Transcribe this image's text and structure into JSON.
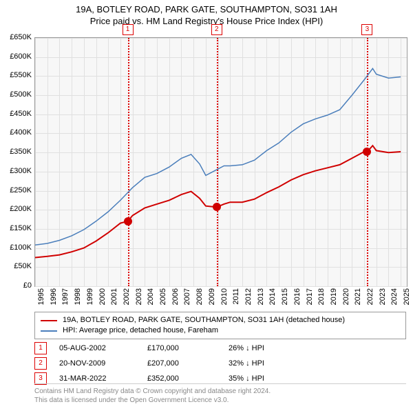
{
  "title": "19A, BOTLEY ROAD, PARK GATE, SOUTHAMPTON, SO31 1AH",
  "subtitle": "Price paid vs. HM Land Registry's House Price Index (HPI)",
  "chart": {
    "type": "line",
    "background_color": "#f7f7f7",
    "grid_color": "#e0e0e0",
    "border_color": "#999999",
    "ylim": [
      0,
      650000
    ],
    "ytick_step": 50000,
    "yticks_labels": [
      "£0",
      "£50K",
      "£100K",
      "£150K",
      "£200K",
      "£250K",
      "£300K",
      "£350K",
      "£400K",
      "£450K",
      "£500K",
      "£550K",
      "£600K",
      "£650K"
    ],
    "xlim": [
      1995,
      2025.5
    ],
    "xticks": [
      1995,
      1996,
      1997,
      1998,
      1999,
      2000,
      2001,
      2002,
      2003,
      2004,
      2005,
      2006,
      2007,
      2008,
      2009,
      2010,
      2011,
      2012,
      2013,
      2014,
      2015,
      2016,
      2017,
      2018,
      2019,
      2020,
      2021,
      2022,
      2023,
      2024,
      2025
    ],
    "marker_color": "#d00000",
    "markers": [
      {
        "num": "1",
        "x": 2002.6
      },
      {
        "num": "2",
        "x": 2009.9
      },
      {
        "num": "3",
        "x": 2022.25
      }
    ],
    "series_property": {
      "label": "19A, BOTLEY ROAD, PARK GATE, SOUTHAMPTON, SO31 1AH (detached house)",
      "color": "#d00000",
      "line_width": 2,
      "data": [
        [
          1995,
          75000
        ],
        [
          1996,
          78000
        ],
        [
          1997,
          82000
        ],
        [
          1998,
          90000
        ],
        [
          1999,
          100000
        ],
        [
          2000,
          118000
        ],
        [
          2001,
          140000
        ],
        [
          2002,
          165000
        ],
        [
          2002.6,
          170000
        ],
        [
          2003,
          185000
        ],
        [
          2004,
          205000
        ],
        [
          2005,
          215000
        ],
        [
          2006,
          225000
        ],
        [
          2007,
          240000
        ],
        [
          2007.8,
          248000
        ],
        [
          2008.5,
          230000
        ],
        [
          2009,
          210000
        ],
        [
          2009.9,
          207000
        ],
        [
          2010.5,
          215000
        ],
        [
          2011,
          220000
        ],
        [
          2012,
          220000
        ],
        [
          2013,
          228000
        ],
        [
          2014,
          245000
        ],
        [
          2015,
          260000
        ],
        [
          2016,
          278000
        ],
        [
          2017,
          292000
        ],
        [
          2018,
          302000
        ],
        [
          2019,
          310000
        ],
        [
          2020,
          318000
        ],
        [
          2021,
          335000
        ],
        [
          2022,
          352000
        ],
        [
          2022.25,
          352000
        ],
        [
          2022.7,
          368000
        ],
        [
          2023,
          355000
        ],
        [
          2024,
          350000
        ],
        [
          2025,
          352000
        ]
      ],
      "points": [
        {
          "x": 2002.6,
          "y": 170000
        },
        {
          "x": 2009.9,
          "y": 207000
        },
        {
          "x": 2022.25,
          "y": 352000
        }
      ]
    },
    "series_hpi": {
      "label": "HPI: Average price, detached house, Fareham",
      "color": "#4a7ebb",
      "line_width": 1.5,
      "data": [
        [
          1995,
          108000
        ],
        [
          1996,
          112000
        ],
        [
          1997,
          120000
        ],
        [
          1998,
          132000
        ],
        [
          1999,
          148000
        ],
        [
          2000,
          170000
        ],
        [
          2001,
          195000
        ],
        [
          2002,
          225000
        ],
        [
          2003,
          258000
        ],
        [
          2004,
          285000
        ],
        [
          2005,
          295000
        ],
        [
          2006,
          312000
        ],
        [
          2007,
          335000
        ],
        [
          2007.8,
          345000
        ],
        [
          2008.5,
          320000
        ],
        [
          2009,
          290000
        ],
        [
          2009.9,
          305000
        ],
        [
          2010.5,
          315000
        ],
        [
          2011,
          315000
        ],
        [
          2012,
          318000
        ],
        [
          2013,
          330000
        ],
        [
          2014,
          355000
        ],
        [
          2015,
          375000
        ],
        [
          2016,
          403000
        ],
        [
          2017,
          425000
        ],
        [
          2018,
          438000
        ],
        [
          2019,
          448000
        ],
        [
          2020,
          462000
        ],
        [
          2021,
          500000
        ],
        [
          2022,
          540000
        ],
        [
          2022.7,
          570000
        ],
        [
          2023,
          555000
        ],
        [
          2024,
          545000
        ],
        [
          2025,
          548000
        ]
      ]
    }
  },
  "legend": {
    "rows": [
      {
        "color": "#d00000",
        "label": "19A, BOTLEY ROAD, PARK GATE, SOUTHAMPTON, SO31 1AH (detached house)"
      },
      {
        "color": "#4a7ebb",
        "label": "HPI: Average price, detached house, Fareham"
      }
    ]
  },
  "events": [
    {
      "num": "1",
      "date": "05-AUG-2002",
      "price": "£170,000",
      "diff": "26% ↓ HPI"
    },
    {
      "num": "2",
      "date": "20-NOV-2009",
      "price": "£207,000",
      "diff": "32% ↓ HPI"
    },
    {
      "num": "3",
      "date": "31-MAR-2022",
      "price": "£352,000",
      "diff": "35% ↓ HPI"
    }
  ],
  "footer": {
    "line1": "Contains HM Land Registry data © Crown copyright and database right 2024.",
    "line2": "This data is licensed under the Open Government Licence v3.0."
  }
}
